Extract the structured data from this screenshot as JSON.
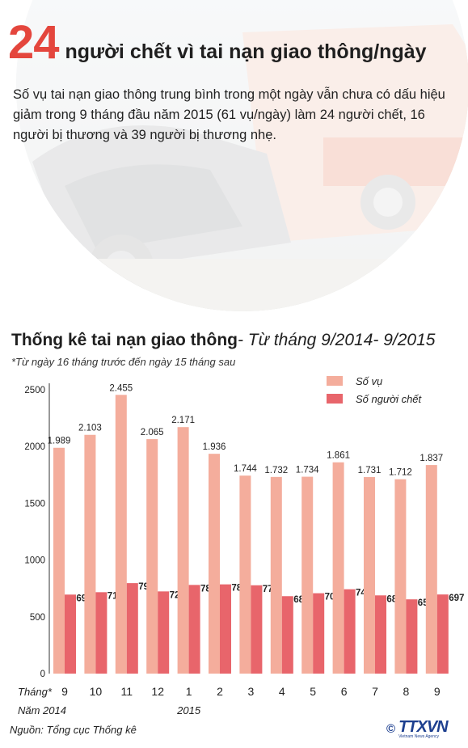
{
  "headline": {
    "number": "24",
    "text": "người chết vì tai nạn giao thông/ngày"
  },
  "intro": "Số vụ tai nạn giao thông trung bình trong một ngày vẫn chưa có dấu hiệu giảm trong 9 tháng đầu năm 2015 (61 vụ/ngày) làm 24 người chết, 16 người bị thương và 39 người bị thương nhẹ.",
  "chart_title": {
    "bold": "Thống kê tai nạn giao thông",
    "italic": "- Từ tháng 9/2014- 9/2015"
  },
  "note": "*Từ ngày 16 tháng trước đến ngày 15 tháng sau",
  "source": "Nguồn: Tổng cục Thống kê",
  "logo": {
    "symbol": "©",
    "name": "TTXVN",
    "tagline": "Vietnam News Agency"
  },
  "chart_data": {
    "type": "bar",
    "categories": [
      "9",
      "10",
      "11",
      "12",
      "1",
      "2",
      "3",
      "4",
      "5",
      "6",
      "7",
      "8",
      "9"
    ],
    "category_axis_label": "Tháng*",
    "year_labels": [
      {
        "label": "Năm 2014",
        "category_index": 0
      },
      {
        "label": "2015",
        "category_index": 4
      }
    ],
    "series": [
      {
        "name": "Số vụ",
        "color": "#f4ad9c",
        "values": [
          1989,
          2103,
          2455,
          2065,
          2171,
          1936,
          1744,
          1732,
          1734,
          1861,
          1731,
          1712,
          1837
        ],
        "labels": [
          "1.989",
          "2.103",
          "2.455",
          "2.065",
          "2.171",
          "1.936",
          "1.744",
          "1.732",
          "1.734",
          "1.861",
          "1.731",
          "1.712",
          "1.837"
        ]
      },
      {
        "name": "Số người chết",
        "color": "#e8656b",
        "values": [
          696,
          717,
          797,
          724,
          781,
          786,
          778,
          682,
          708,
          743,
          689,
          654,
          697
        ],
        "labels": [
          "696",
          "717",
          "797",
          "724",
          "781",
          "786",
          "778",
          "682",
          "708",
          "743",
          "689",
          "654",
          "697"
        ]
      }
    ],
    "yticks": [
      0,
      500,
      1000,
      1500,
      2000,
      2500
    ],
    "ylim": [
      0,
      2500
    ],
    "grid": false,
    "legend": "top-right"
  }
}
